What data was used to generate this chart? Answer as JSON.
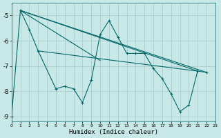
{
  "title": "",
  "xlabel": "Humidex (Indice chaleur)",
  "background_color": "#c8e8e8",
  "grid_color": "#a8c8c8",
  "line_color": "#006666",
  "xlim": [
    0,
    23
  ],
  "ylim": [
    -9.2,
    -4.5
  ],
  "yticks": [
    -9,
    -8,
    -7,
    -6,
    -5
  ],
  "xticks": [
    0,
    1,
    2,
    3,
    4,
    5,
    6,
    7,
    8,
    9,
    10,
    11,
    12,
    13,
    14,
    15,
    16,
    17,
    18,
    19,
    20,
    21,
    22,
    23
  ],
  "line1": [
    [
      -9.0,
      0
    ],
    [
      -4.8,
      1
    ],
    [
      -5.55,
      2
    ],
    [
      -6.4,
      3
    ],
    [
      -7.9,
      5
    ],
    [
      -7.8,
      6
    ],
    [
      -7.9,
      7
    ],
    [
      -8.45,
      8
    ],
    [
      -7.55,
      9
    ],
    [
      -5.75,
      10
    ],
    [
      -5.2,
      11
    ],
    [
      -5.85,
      12
    ],
    [
      -6.5,
      13
    ],
    [
      -6.5,
      14
    ],
    [
      -6.5,
      15
    ],
    [
      -7.1,
      16
    ],
    [
      -7.5,
      17
    ],
    [
      -8.1,
      18
    ],
    [
      -8.8,
      19
    ],
    [
      -8.55,
      20
    ],
    [
      -7.2,
      21
    ],
    [
      -7.25,
      22
    ]
  ],
  "line2_x": [
    1,
    21
  ],
  "line2_y": [
    -4.8,
    -7.2
  ],
  "line3_x": [
    1,
    10
  ],
  "line3_y": [
    -4.8,
    -6.78
  ],
  "line4_x": [
    3,
    21
  ],
  "line4_y": [
    -6.4,
    -7.2
  ],
  "line5_x": [
    1,
    22
  ],
  "line5_y": [
    -4.8,
    -7.25
  ]
}
